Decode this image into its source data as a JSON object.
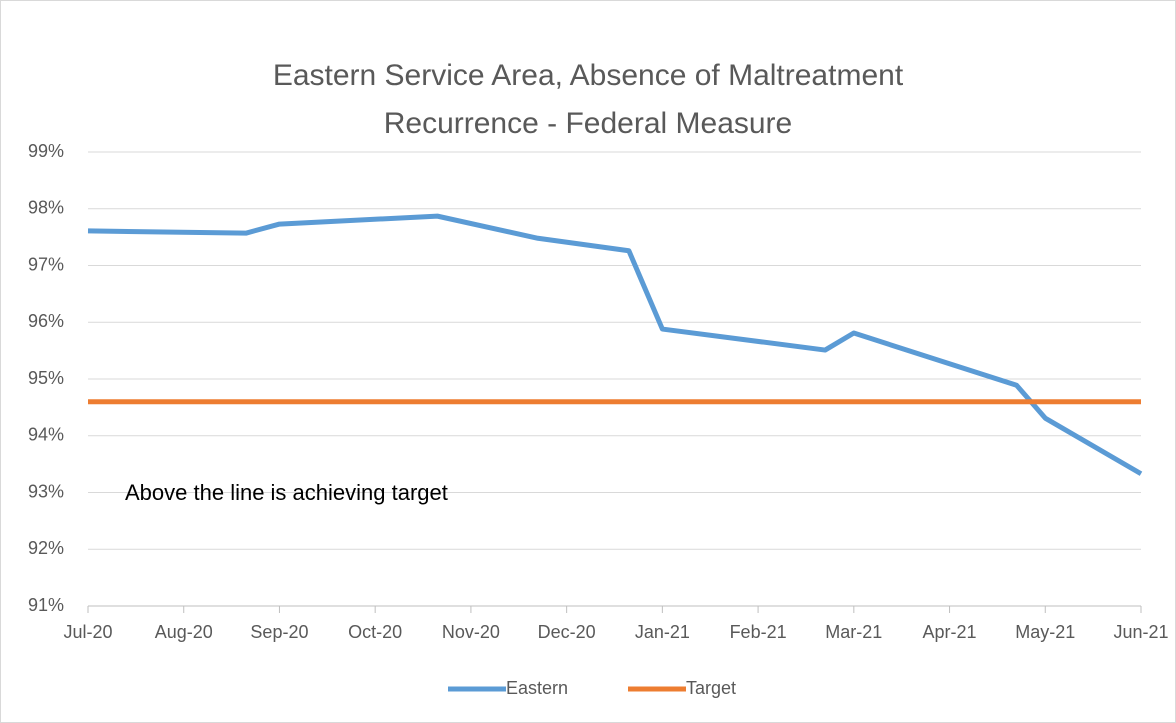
{
  "chart_data": {
    "type": "line",
    "title": "Eastern Service Area, Absence of Maltreatment Recurrence - Federal Measure",
    "annotation": "Above the line is achieving target",
    "xlim": [
      0,
      11
    ],
    "xticks": [
      {
        "value": 0,
        "label": "Jul-20"
      },
      {
        "value": 1,
        "label": "Aug-20"
      },
      {
        "value": 2,
        "label": "Sep-20"
      },
      {
        "value": 3,
        "label": "Oct-20"
      },
      {
        "value": 4,
        "label": "Nov-20"
      },
      {
        "value": 5,
        "label": "Dec-20"
      },
      {
        "value": 6,
        "label": "Jan-21"
      },
      {
        "value": 7,
        "label": "Feb-21"
      },
      {
        "value": 8,
        "label": "Mar-21"
      },
      {
        "value": 9,
        "label": "Apr-21"
      },
      {
        "value": 10,
        "label": "May-21"
      },
      {
        "value": 11,
        "label": "Jun-21"
      }
    ],
    "ylim": [
      91,
      99
    ],
    "yticks": [
      {
        "value": 91,
        "label": "91%"
      },
      {
        "value": 92,
        "label": "92%"
      },
      {
        "value": 93,
        "label": "93%"
      },
      {
        "value": 94,
        "label": "94%"
      },
      {
        "value": 95,
        "label": "95%"
      },
      {
        "value": 96,
        "label": "96%"
      },
      {
        "value": 97,
        "label": "97%"
      },
      {
        "value": 98,
        "label": "98%"
      },
      {
        "value": 99,
        "label": "99%"
      }
    ],
    "grid": true,
    "legend": "bottom",
    "series": [
      {
        "name": "Eastern",
        "color": "#5b9bd5",
        "x": [
          0,
          1.65,
          2,
          3.65,
          4.7,
          5.65,
          6,
          7.7,
          8,
          9.7,
          10,
          11
        ],
        "values": [
          97.61,
          97.57,
          97.73,
          97.87,
          97.48,
          97.26,
          95.88,
          95.51,
          95.81,
          94.89,
          94.31,
          93.33
        ]
      },
      {
        "name": "Target",
        "color": "#ed7d31",
        "x": [
          0,
          11
        ],
        "values": [
          94.6,
          94.6
        ]
      }
    ]
  }
}
